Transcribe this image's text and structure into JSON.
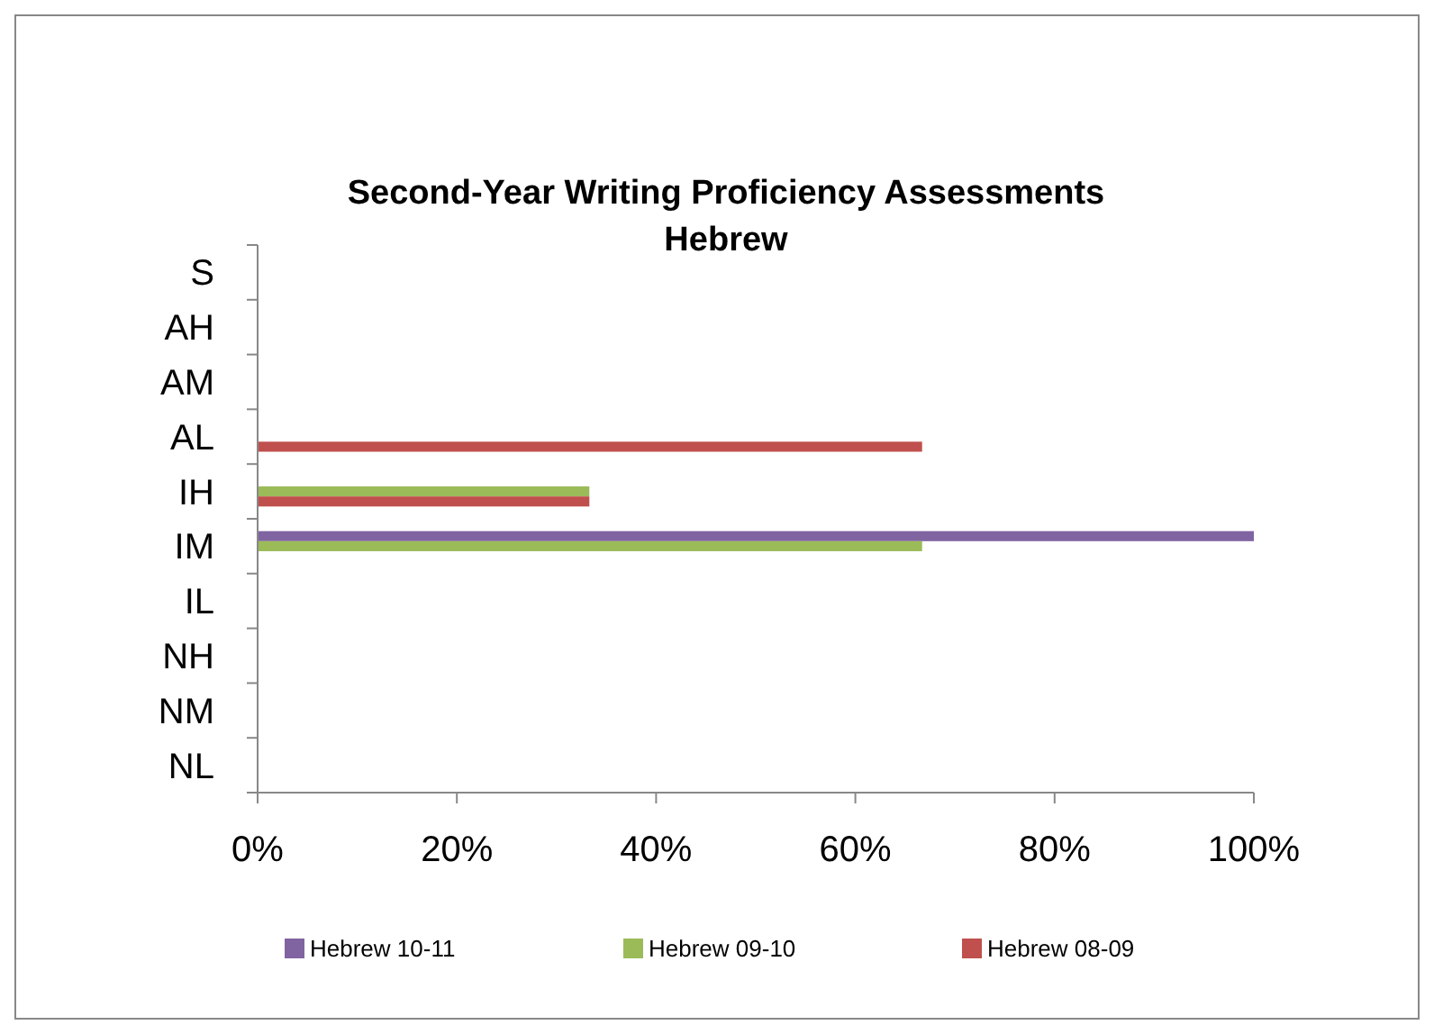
{
  "chart_data": {
    "type": "bar",
    "orientation": "horizontal",
    "title": "Second-Year Writing Proficiency Assessments\nHebrew",
    "categories": [
      "S",
      "AH",
      "AM",
      "AL",
      "IH",
      "IM",
      "IL",
      "NH",
      "NM",
      "NL"
    ],
    "series": [
      {
        "name": "Hebrew 10-11",
        "color": "#8064a2",
        "values": [
          null,
          null,
          null,
          null,
          null,
          100,
          null,
          null,
          null,
          null
        ]
      },
      {
        "name": "Hebrew 09-10",
        "color": "#9bbb59",
        "values": [
          null,
          null,
          null,
          null,
          33.3,
          66.7,
          null,
          null,
          null,
          null
        ]
      },
      {
        "name": "Hebrew 08-09",
        "color": "#c0504d",
        "values": [
          null,
          null,
          null,
          66.7,
          33.3,
          null,
          null,
          null,
          null,
          null
        ]
      }
    ],
    "xlim": [
      0,
      100
    ],
    "xticks": [
      {
        "value": 0,
        "label": "0%"
      },
      {
        "value": 20,
        "label": "20%"
      },
      {
        "value": 40,
        "label": "40%"
      },
      {
        "value": 60,
        "label": "60%"
      },
      {
        "value": 80,
        "label": "80%"
      },
      {
        "value": 100,
        "label": "100%"
      }
    ],
    "grid": false,
    "legend": "bottom"
  }
}
